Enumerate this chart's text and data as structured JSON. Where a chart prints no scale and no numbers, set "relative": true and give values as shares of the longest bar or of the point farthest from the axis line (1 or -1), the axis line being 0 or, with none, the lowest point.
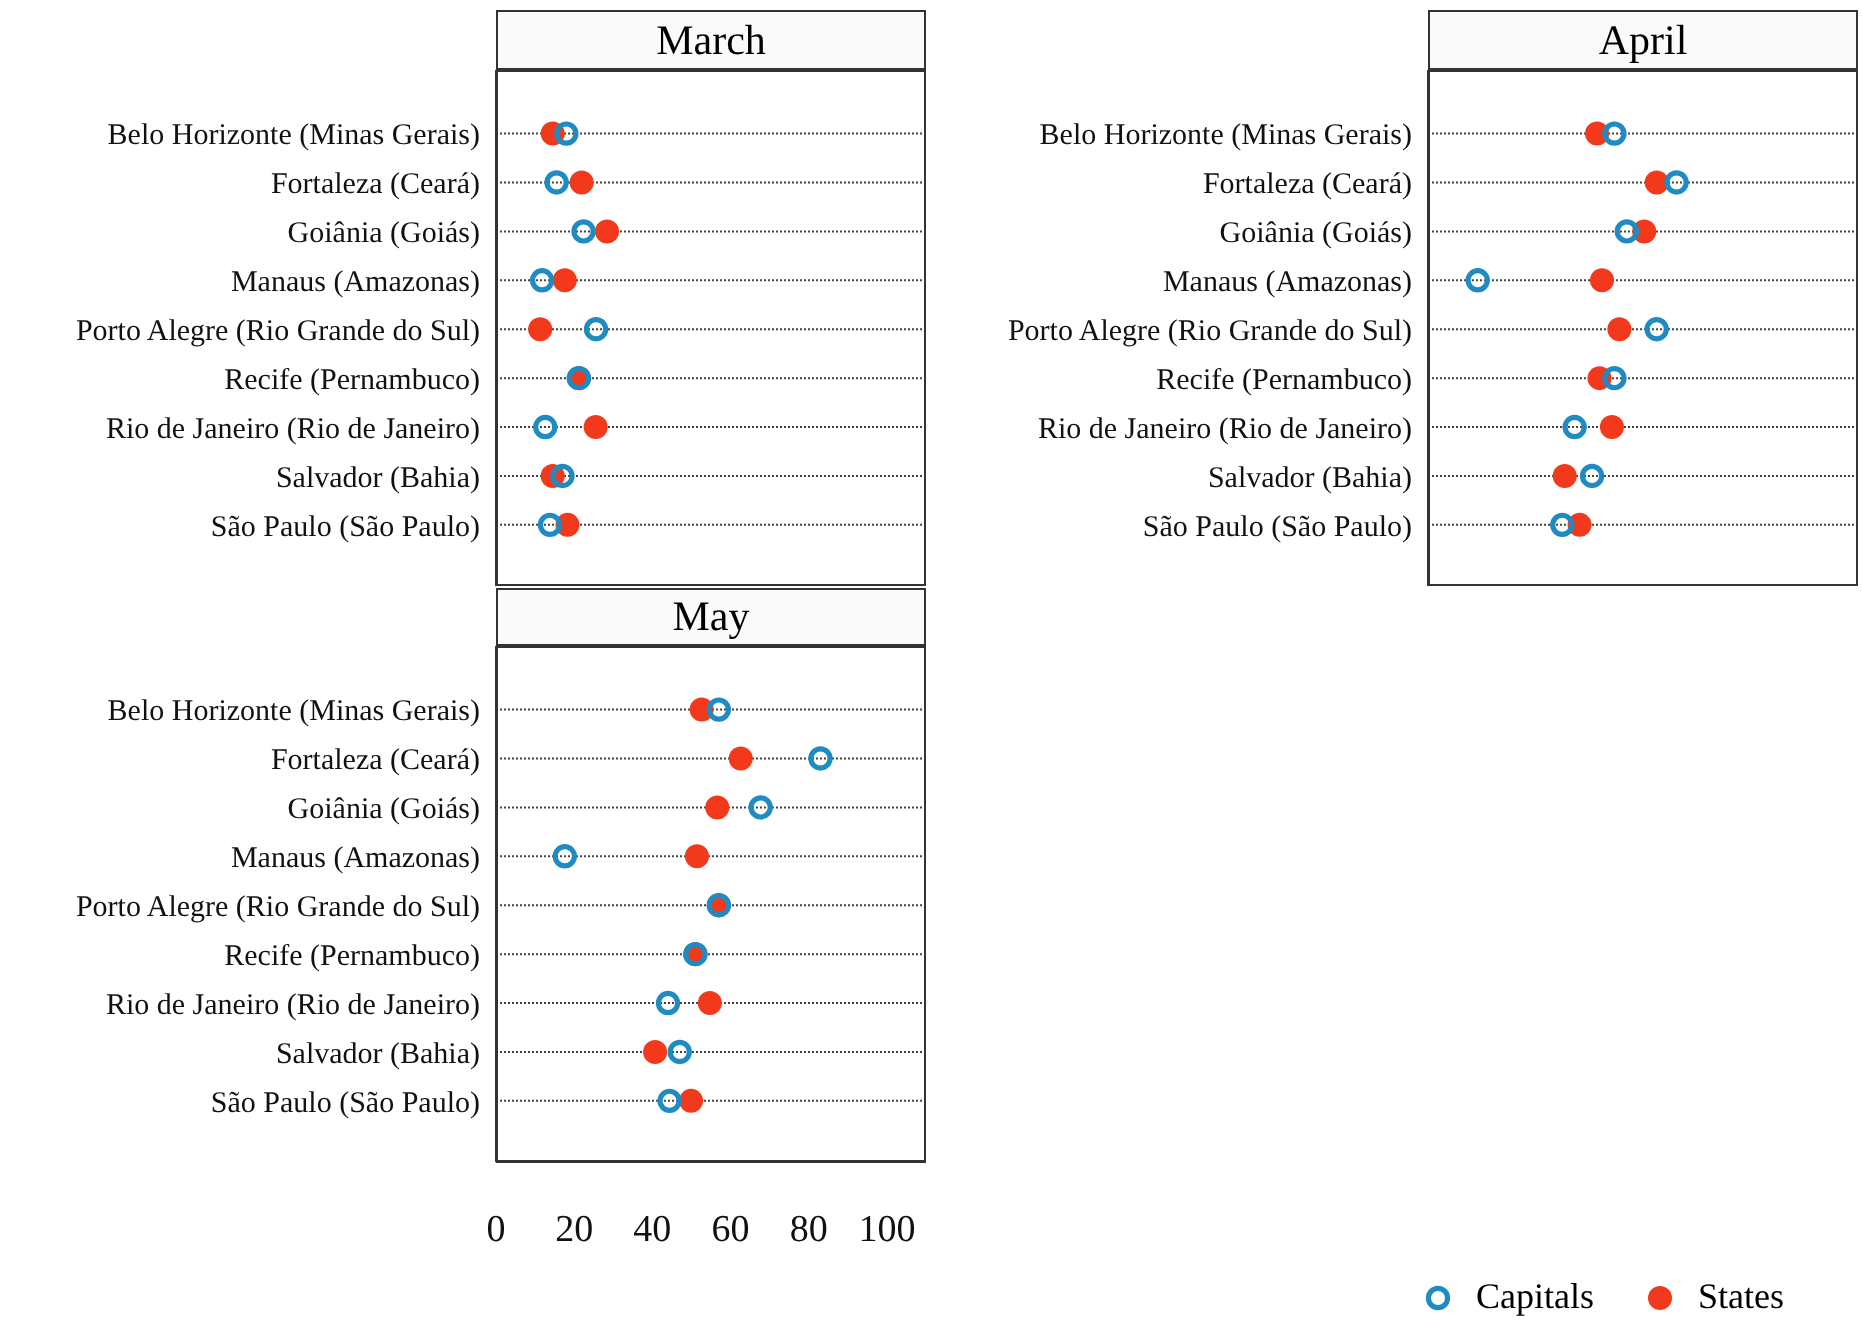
{
  "chart_data": [
    {
      "type": "scatter",
      "orientation": "horizontal",
      "title": "March",
      "categories": [
        "Belo Horizonte (Minas Gerais)",
        "Fortaleza (Ceará)",
        "Goiânia (Goiás)",
        "Manaus (Amazonas)",
        "Porto Alegre (Rio Grande do Sul)",
        "Recife (Pernambuco)",
        "Rio de Janeiro (Rio de Janeiro)",
        "Salvador (Bahia)",
        "São Paulo (São Paulo)"
      ],
      "xlim": [
        0,
        110
      ],
      "xticks": [
        0,
        20,
        40,
        60,
        80,
        100
      ],
      "tick_labels": "y",
      "grid": "y",
      "marker": "circle",
      "series": [
        {
          "color": "#1f8bc3",
          "values": [
            18,
            15.5,
            22.4,
            11.8,
            25.6,
            21.2,
            12.6,
            17,
            13.8
          ]
        },
        {
          "color": "#f2391c",
          "values": [
            14.5,
            21.9,
            28.4,
            17.6,
            11.3,
            21.2,
            25.5,
            14.5,
            18.3
          ]
        }
      ]
    },
    {
      "type": "scatter",
      "orientation": "horizontal",
      "relative": true,
      "title": "April",
      "categories": [
        "Belo Horizonte (Minas Gerais)",
        "Fortaleza (Ceará)",
        "Goiânia (Goiás)",
        "Manaus (Amazonas)",
        "Porto Alegre (Rio Grande do Sul)",
        "Recife (Pernambuco)",
        "Rio de Janeiro (Rio de Janeiro)",
        "Salvador (Bahia)",
        "São Paulo (São Paulo)"
      ],
      "tick_labels": "y",
      "grid": "y",
      "marker": "circle",
      "series": [
        {
          "color": "#1f8bc3",
          "values": [
            0.75,
            1,
            0.8,
            0.2,
            0.92,
            0.75,
            0.59,
            0.66,
            0.54
          ]
        },
        {
          "color": "#f2391c",
          "values": [
            0.68,
            0.92,
            0.87,
            0.7,
            0.77,
            0.69,
            0.74,
            0.55,
            0.61
          ]
        }
      ]
    },
    {
      "type": "scatter",
      "orientation": "horizontal",
      "title": "May",
      "categories": [
        "Belo Horizonte (Minas Gerais)",
        "Fortaleza (Ceará)",
        "Goiânia (Goiás)",
        "Manaus (Amazonas)",
        "Porto Alegre (Rio Grande do Sul)",
        "Recife (Pernambuco)",
        "Rio de Janeiro (Rio de Janeiro)",
        "Salvador (Bahia)",
        "São Paulo (São Paulo)"
      ],
      "xlim": [
        0,
        110
      ],
      "xticks": [
        0,
        20,
        40,
        60,
        80,
        100
      ],
      "grid": "y",
      "marker": "circle",
      "legend": "bottom right",
      "series": [
        {
          "name": "Capitals",
          "color": "#1f8bc3",
          "values": [
            57,
            83,
            67.7,
            17.6,
            57,
            51,
            44,
            47,
            44.4
          ]
        },
        {
          "name": "States",
          "color": "#f2391c",
          "values": [
            52.6,
            62.6,
            56.6,
            51.4,
            57,
            51,
            54.7,
            40.7,
            49.9
          ]
        }
      ]
    }
  ]
}
